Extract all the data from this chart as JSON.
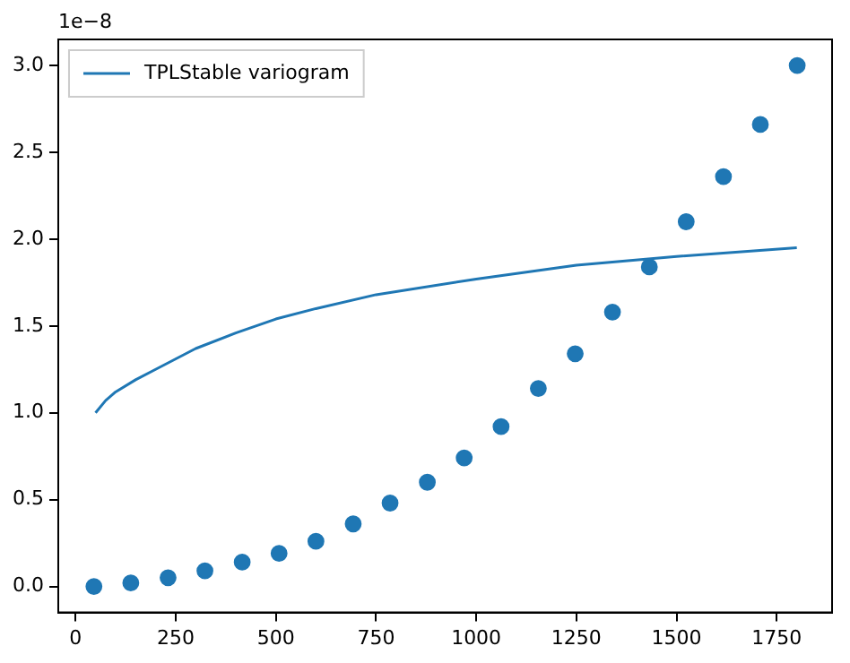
{
  "chart_data": {
    "type": "scatter",
    "annotations": [
      "1e−8"
    ],
    "legend": "top left",
    "grid": false,
    "xlim": [
      -43,
      1888
    ],
    "xticks": [
      0,
      250,
      500,
      750,
      1000,
      1250,
      1500,
      1750
    ],
    "ylim": [
      -0.15,
      3.15
    ],
    "yticks": [
      {
        "value": 0,
        "label": "0.0"
      },
      {
        "value": 0.5,
        "label": "0.5"
      },
      {
        "value": 1,
        "label": "1.0"
      },
      {
        "value": 1.5,
        "label": "1.5"
      },
      {
        "value": 2,
        "label": "2.0"
      },
      {
        "value": 2.5,
        "label": "2.5"
      },
      {
        "value": 3,
        "label": "3.0"
      }
    ],
    "series": [
      {
        "type": "line",
        "name": "TPLStable variogram",
        "color": "#1f77b4",
        "marker": "none",
        "x": [
          50,
          75,
          100,
          150,
          200,
          300,
          400,
          500,
          600,
          750,
          1000,
          1250,
          1500,
          1800
        ],
        "values": [
          1.0,
          1.07,
          1.12,
          1.19,
          1.25,
          1.37,
          1.46,
          1.54,
          1.6,
          1.68,
          1.77,
          1.85,
          1.9,
          1.95
        ]
      },
      {
        "type": "scatter",
        "color": "#1f77b4",
        "marker": "circle",
        "x": [
          46,
          138,
          231,
          323,
          416,
          508,
          600,
          693,
          785,
          878,
          970,
          1062,
          1155,
          1247,
          1340,
          1432,
          1524,
          1617,
          1709,
          1801
        ],
        "values": [
          0.0,
          0.02,
          0.05,
          0.09,
          0.14,
          0.19,
          0.26,
          0.36,
          0.48,
          0.6,
          0.74,
          0.92,
          1.14,
          1.34,
          1.58,
          1.84,
          2.1,
          2.36,
          2.66,
          3.0
        ]
      }
    ]
  }
}
